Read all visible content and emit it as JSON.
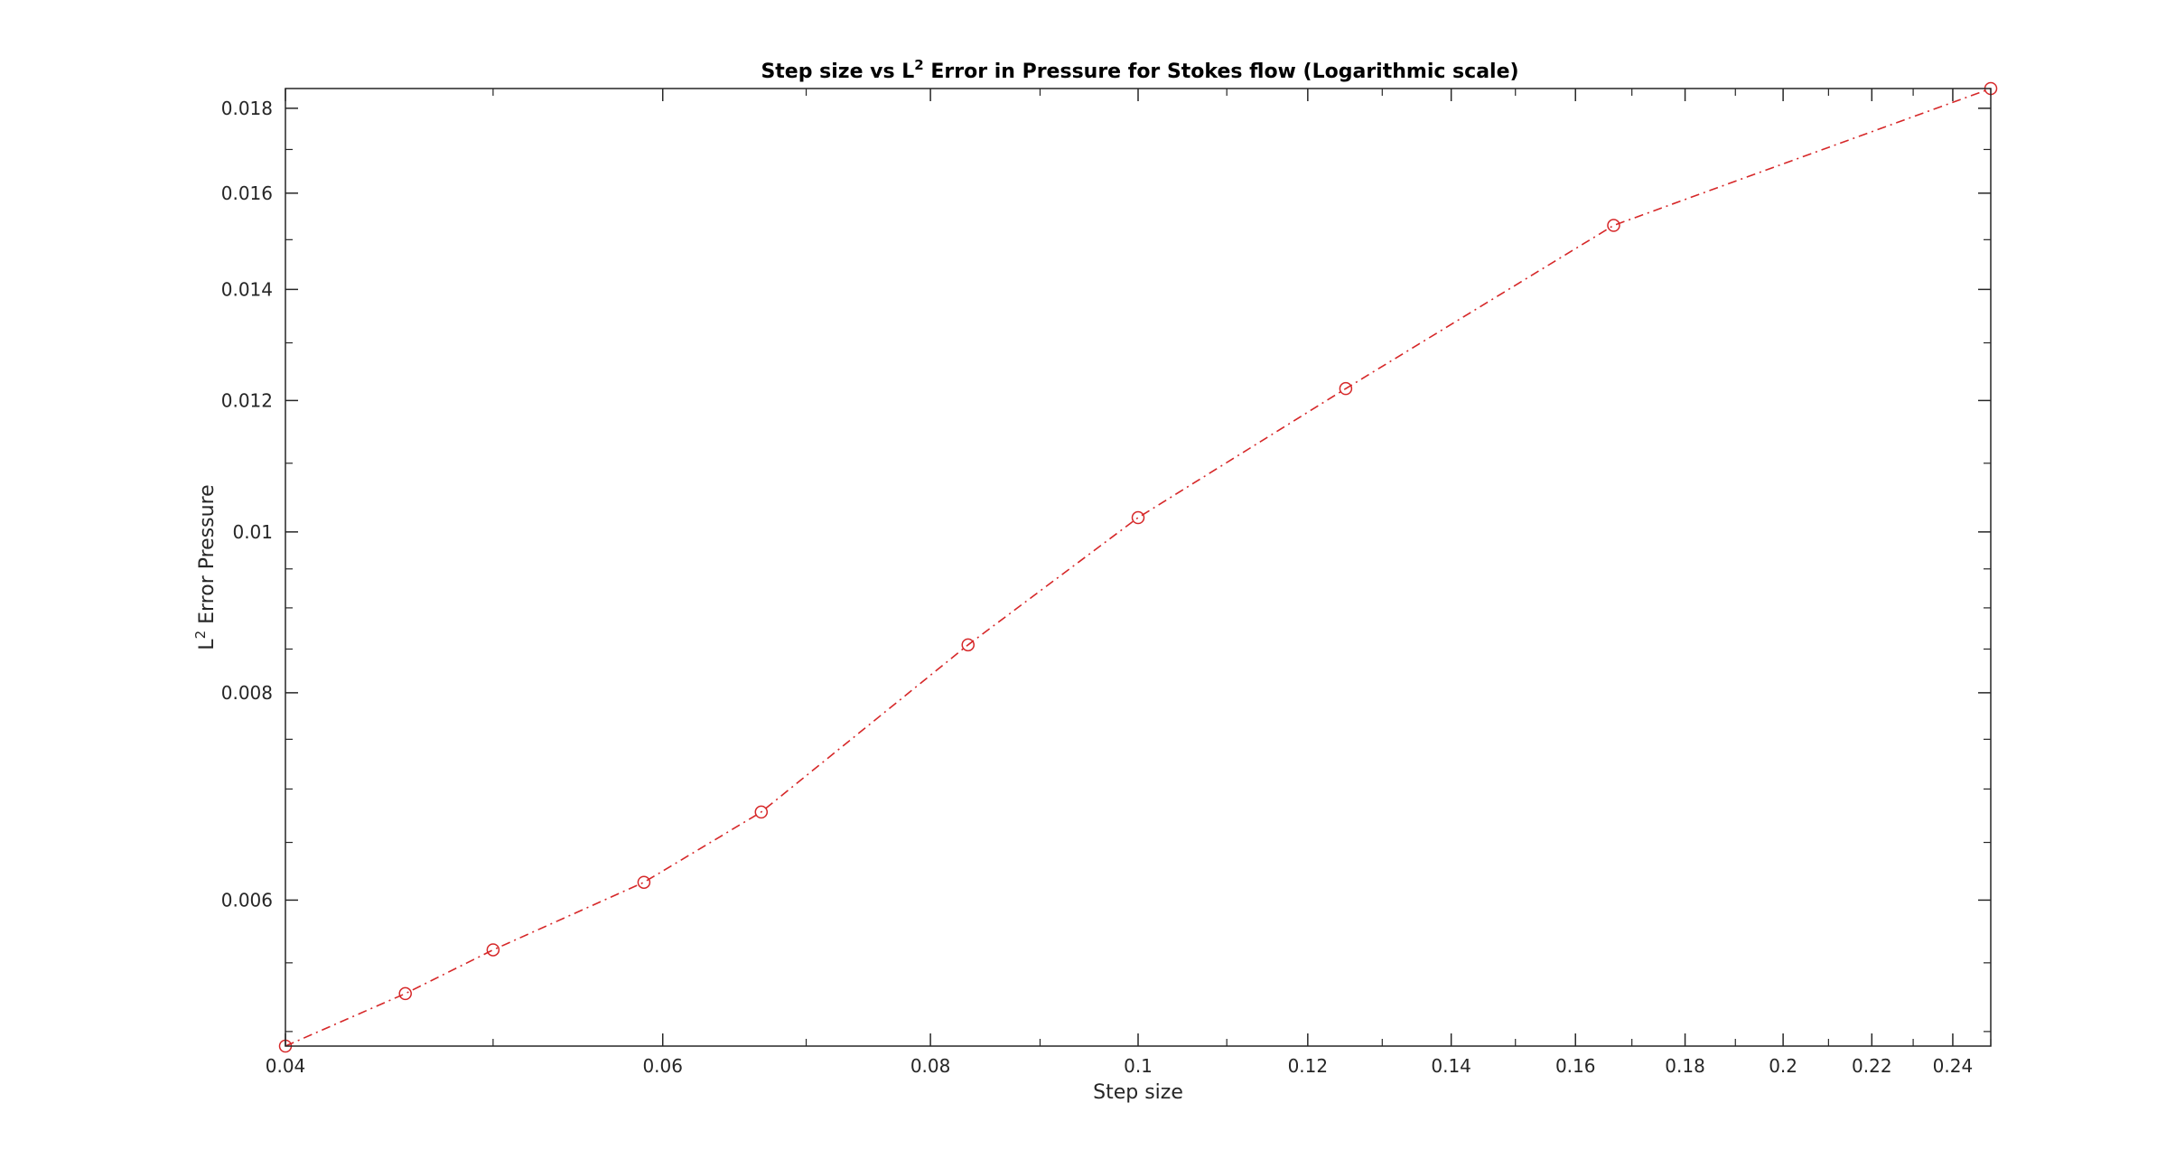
{
  "chart_data": {
    "type": "line",
    "title": {
      "prefix": "Step size vs L",
      "superscript": "2",
      "suffix": " Error in Pressure for Stokes flow (Logarithmic scale)"
    },
    "xlabel": "Step size",
    "ylabel": {
      "prefix": "L",
      "superscript": "2",
      "suffix": " Error Pressure"
    },
    "xscale": "log",
    "yscale": "log",
    "xlim": [
      0.04,
      0.25
    ],
    "ylim": [
      0.0049,
      0.0185
    ],
    "x_ticks": [
      0.04,
      0.06,
      0.08,
      0.1,
      0.12,
      0.14,
      0.16,
      0.18,
      0.2,
      0.22,
      0.24
    ],
    "x_tick_labels": [
      "0.04",
      "0.06",
      "0.08",
      "0.1",
      "0.12",
      "0.14",
      "0.16",
      "0.18",
      "0.2",
      "0.22",
      "0.24"
    ],
    "x_minor_ticks": [
      0.05,
      0.07,
      0.09,
      0.11,
      0.13,
      0.15,
      0.17,
      0.19,
      0.21,
      0.23,
      0.25
    ],
    "y_ticks": [
      0.006,
      0.008,
      0.01,
      0.012,
      0.014,
      0.016,
      0.018
    ],
    "y_tick_labels": [
      "0.006",
      "0.008",
      "0.01",
      "0.012",
      "0.014",
      "0.016",
      "0.018"
    ],
    "y_minor_ticks": [
      0.005,
      0.0055,
      0.0065,
      0.007,
      0.0075,
      0.0085,
      0.009,
      0.0095,
      0.011,
      0.013,
      0.015,
      0.017
    ],
    "grid": false,
    "box": true,
    "series": [
      {
        "color": "#d62728",
        "line_style": "dash-dot",
        "marker": "circle",
        "x": [
          0.04,
          0.0455,
          0.05,
          0.0588,
          0.0667,
          0.0833,
          0.1,
          0.125,
          0.1667,
          0.25
        ],
        "y": [
          0.0049,
          0.00527,
          0.0056,
          0.00615,
          0.00678,
          0.00855,
          0.0102,
          0.0122,
          0.0153,
          0.0185
        ]
      }
    ]
  }
}
